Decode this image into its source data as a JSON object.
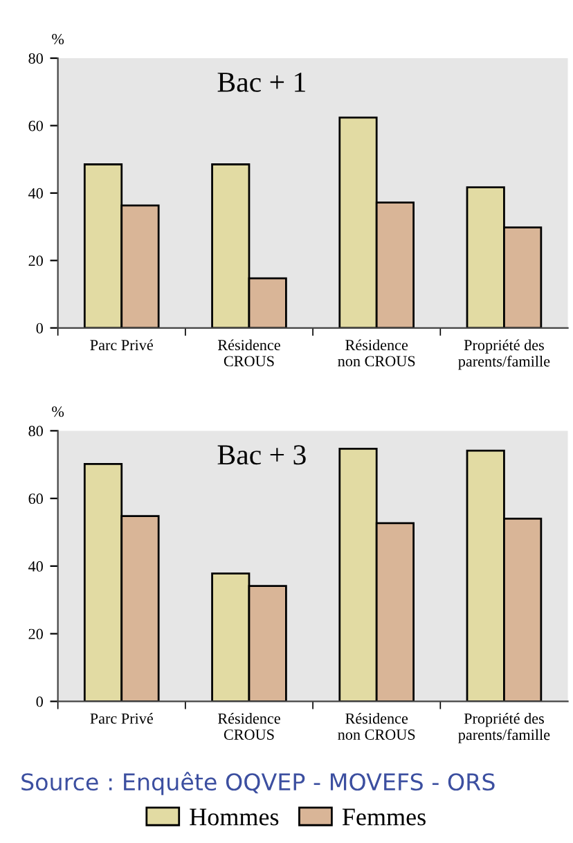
{
  "chart_data": [
    {
      "type": "bar",
      "title": "Bac + 1",
      "ylabel": "%",
      "categories": [
        "Parc Privé",
        "Résidence\nCROUS",
        "Résidence\nnon CROUS",
        "Propriété des\nparents/famille"
      ],
      "ylim": [
        0,
        80
      ],
      "yticks": [
        0,
        20,
        40,
        60,
        80
      ],
      "grid": false,
      "legend": false,
      "series": [
        {
          "color": "#e2dba3",
          "values": [
            48.5,
            48.5,
            62.4,
            41.7
          ]
        },
        {
          "color": "#d9b597",
          "values": [
            36.3,
            14.7,
            37.2,
            29.8
          ]
        }
      ]
    },
    {
      "type": "bar",
      "title": "Bac + 3",
      "ylabel": "%",
      "categories": [
        "Parc Privé",
        "Résidence\nCROUS",
        "Résidence\nnon CROUS",
        "Propriété des\nparents/famille"
      ],
      "ylim": [
        0,
        80
      ],
      "yticks": [
        0,
        20,
        40,
        60,
        80
      ],
      "grid": false,
      "legend": "bottom",
      "annotations": [
        "Source : Enquête OQVEP - MOVEFS - ORS"
      ],
      "series": [
        {
          "name": "Hommes",
          "color": "#e2dba3",
          "values": [
            70.2,
            37.8,
            74.7,
            74.1
          ]
        },
        {
          "name": "Femmes",
          "color": "#d9b597",
          "values": [
            54.8,
            34.1,
            52.7,
            54.0
          ]
        }
      ]
    }
  ]
}
